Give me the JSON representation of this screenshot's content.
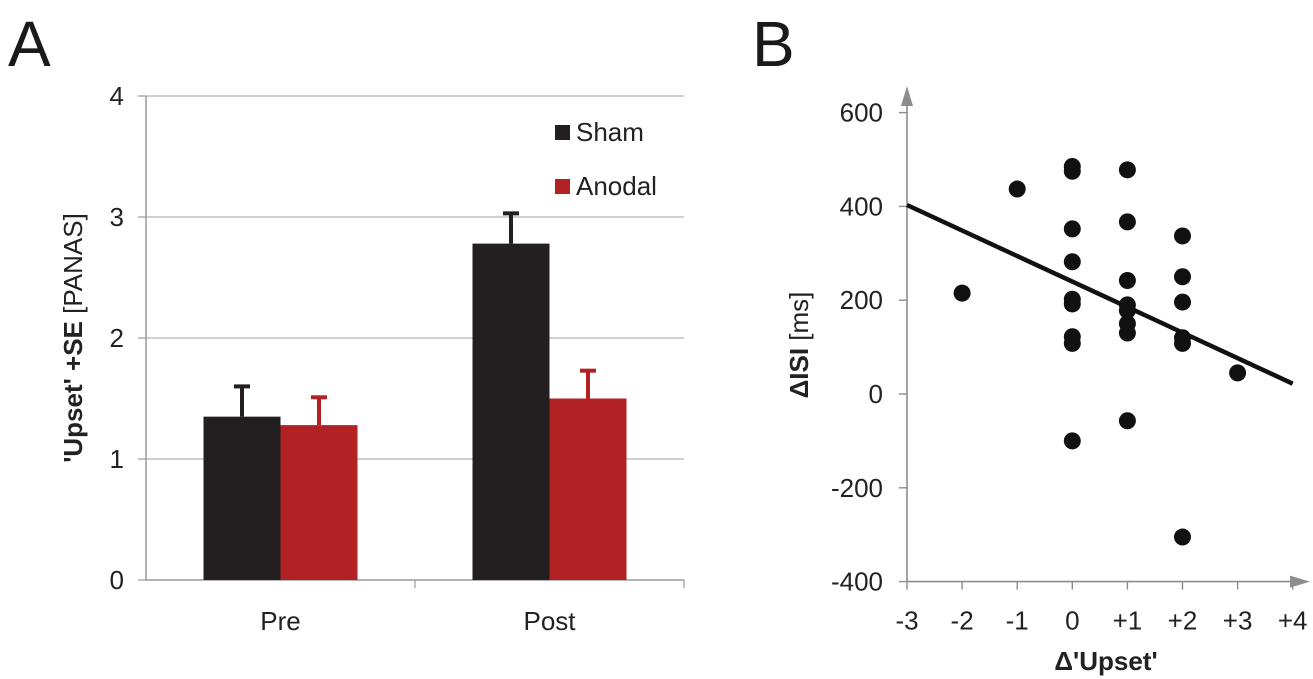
{
  "chart_data": [
    {
      "panel_label": "A",
      "type": "bar",
      "categories": [
        "Pre",
        "Post"
      ],
      "series": [
        {
          "name": "Sham",
          "values": [
            1.35,
            2.78
          ],
          "errors": [
            0.25,
            0.25
          ],
          "color": "#231f20"
        },
        {
          "name": "Anodal",
          "values": [
            1.28,
            1.5
          ],
          "errors": [
            0.23,
            0.23
          ],
          "color": "#b22225"
        }
      ],
      "ylabel_bold": "'Upset' +SE",
      "ylabel_rest": " [PANAS]",
      "ylim": [
        0,
        4
      ],
      "yticks": [
        "0",
        "1",
        "2",
        "3",
        "4"
      ],
      "grid": true,
      "legend_position": "top-right"
    },
    {
      "panel_label": "B",
      "type": "scatter",
      "xlabel": "Δ'Upset'",
      "ylabel_bold": "ΔISI",
      "ylabel_rest": " [ms]",
      "xlim": [
        -3,
        4
      ],
      "ylim": [
        -400,
        600
      ],
      "xticks": [
        "-3",
        "-2",
        "-1",
        "0",
        "+1",
        "+2",
        "+3",
        "+4"
      ],
      "yticks": [
        "-400",
        "-200",
        "0",
        "200",
        "400",
        "600"
      ],
      "points": [
        {
          "x": -2,
          "y": 215
        },
        {
          "x": -1,
          "y": 437
        },
        {
          "x": 0,
          "y": 485
        },
        {
          "x": 0,
          "y": 475
        },
        {
          "x": 0,
          "y": 352
        },
        {
          "x": 0,
          "y": 282
        },
        {
          "x": 0,
          "y": 202
        },
        {
          "x": 0,
          "y": 192
        },
        {
          "x": 0,
          "y": 122
        },
        {
          "x": 0,
          "y": 108
        },
        {
          "x": 0,
          "y": -100
        },
        {
          "x": 1,
          "y": 478
        },
        {
          "x": 1,
          "y": 367
        },
        {
          "x": 1,
          "y": 242
        },
        {
          "x": 1,
          "y": 190
        },
        {
          "x": 1,
          "y": 178
        },
        {
          "x": 1,
          "y": 150
        },
        {
          "x": 1,
          "y": 130
        },
        {
          "x": 1,
          "y": -57
        },
        {
          "x": 2,
          "y": 337
        },
        {
          "x": 2,
          "y": 250
        },
        {
          "x": 2,
          "y": 196
        },
        {
          "x": 2,
          "y": 120
        },
        {
          "x": 2,
          "y": 108
        },
        {
          "x": 2,
          "y": -305
        },
        {
          "x": 3,
          "y": 45
        }
      ],
      "fit_line": {
        "x": [
          -3,
          4
        ],
        "y": [
          403,
          22
        ]
      },
      "point_color": "#111111"
    }
  ]
}
